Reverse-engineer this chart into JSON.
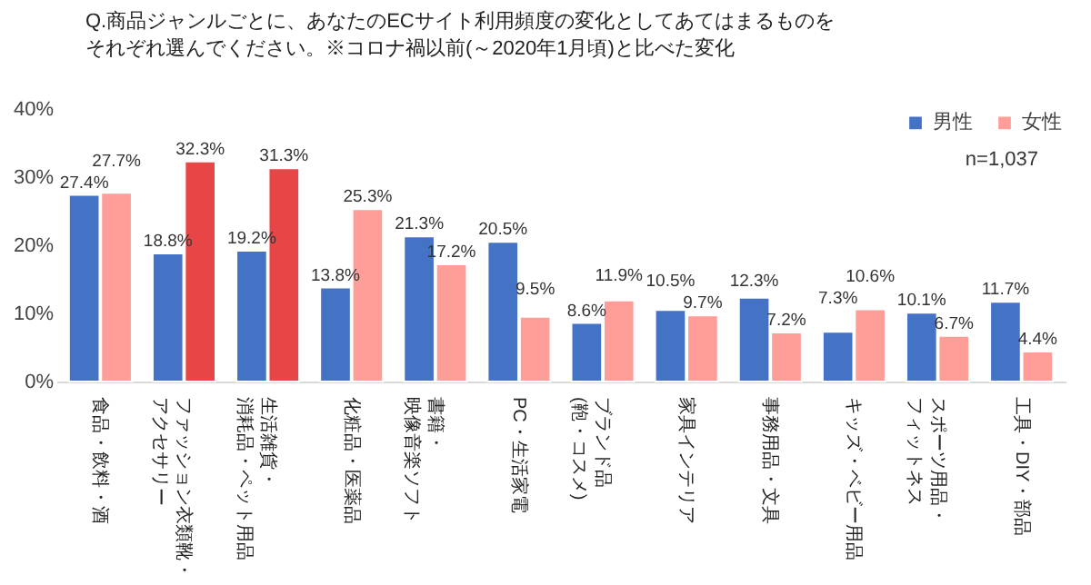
{
  "chart_data": {
    "type": "bar",
    "title": "Q.商品ジャンルごとに、あなたのECサイト利用頻度の変化としてあてはまるものをそれぞれ選んでください。※コロナ禍以前(～2020年1月頃)と比べた変化",
    "categories": [
      "食品・飲料・酒",
      "ファッション衣類靴・アクセサリー",
      "生活雑貨・消耗品・ペット用品",
      "化粧品・医薬品",
      "書籍・映像音楽ソフト",
      "PC・生活家電",
      "ブランド品(鞄・コスメ)",
      "家具インテリア",
      "事務用品・文具",
      "キッズ・ベビー用品",
      "スポーツ用品・フィットネス",
      "工具・DIY・部品"
    ],
    "series": [
      {
        "name": "男性",
        "color": "#4472c4",
        "values": [
          27.4,
          18.8,
          19.2,
          13.8,
          21.3,
          20.5,
          8.6,
          10.5,
          12.3,
          7.3,
          10.1,
          11.7
        ],
        "value_labels": [
          "27.4%",
          "18.8%",
          "19.2%",
          "13.8%",
          "21.3%",
          "20.5%",
          "8.6%",
          "10.5%",
          "12.3%",
          "7.3%",
          "10.1%",
          "11.7%"
        ]
      },
      {
        "name": "女性",
        "color": "#ff9e99",
        "colors": [
          "#ff9e99",
          "#e84646",
          "#e84646",
          "#ff9e99",
          "#ff9e99",
          "#ff9e99",
          "#ff9e99",
          "#ff9e99",
          "#ff9e99",
          "#ff9e99",
          "#ff9e99",
          "#ff9e99"
        ],
        "values": [
          27.7,
          32.3,
          31.3,
          25.3,
          17.2,
          9.5,
          11.9,
          9.7,
          7.2,
          10.6,
          6.7,
          4.4
        ],
        "value_labels": [
          "27.7%",
          "32.3%",
          "31.3%",
          "25.3%",
          "17.2%",
          "9.5%",
          "11.9%",
          "9.7%",
          "7.2%",
          "10.6%",
          "6.7%",
          "4.4%"
        ]
      }
    ],
    "ylim": [
      0,
      40
    ],
    "yticks": [
      {
        "value": 0,
        "label": "0%"
      },
      {
        "value": 10,
        "label": "10%"
      },
      {
        "value": 20,
        "label": "20%"
      },
      {
        "value": 30,
        "label": "30%"
      },
      {
        "value": 40,
        "label": "40%"
      }
    ],
    "grid": false,
    "legend": "top right",
    "annotations": [
      "n=1,037"
    ]
  }
}
